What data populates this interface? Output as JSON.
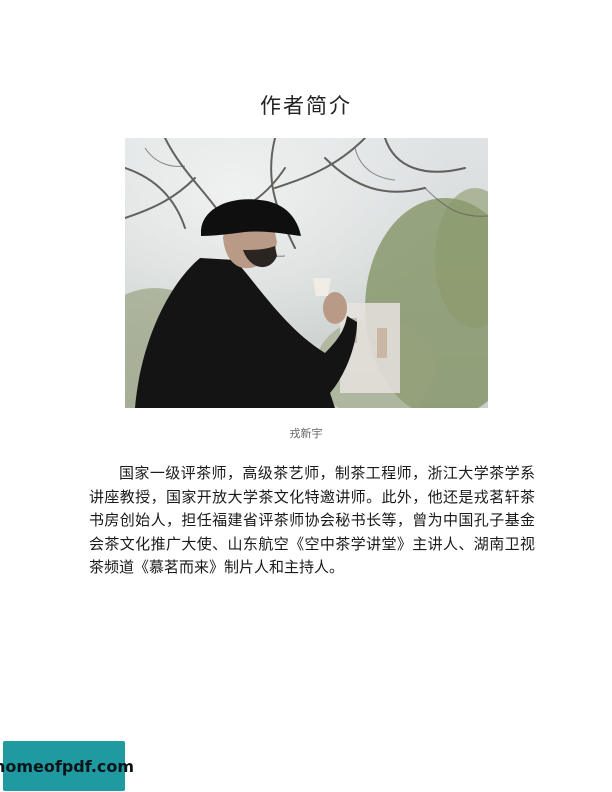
{
  "page": {
    "title": "作者简介",
    "photo_alt": "戎新宇",
    "caption": "戎新宇",
    "bio": "国家一级评茶师，高级茶艺师，制茶工程师，浙江大学茶学系讲座教授，国家开放大学茶文化特邀讲师。此外，他还是戎茗轩茶书房创始人，担任福建省评茶师协会秘书长等，曾为中国孔子基金会茶文化推广大使、山东航空《空中茶学讲堂》主讲人、湖南卫视茶频道《慕茗而来》制片人和主持人。"
  },
  "watermark": {
    "text": "homeofpdf.com"
  }
}
